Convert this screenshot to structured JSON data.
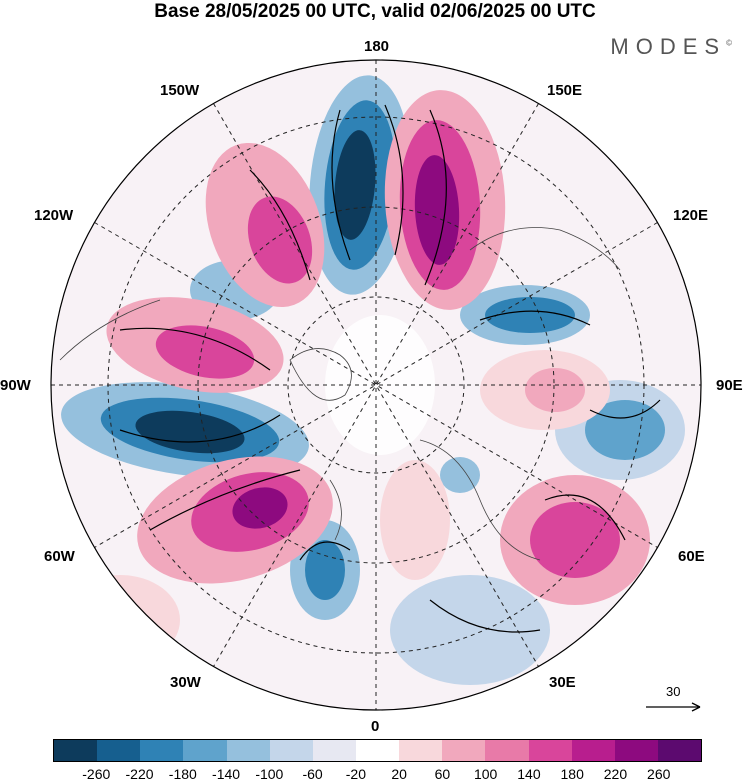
{
  "title": "Base 28/05/2025 00 UTC, valid 02/06/2025 00 UTC",
  "brand": "MODES",
  "brand_mark": "©",
  "longitude_labels": {
    "lon_180": "180",
    "lon_150E": "150E",
    "lon_120E": "120E",
    "lon_90E": "90E",
    "lon_60E": "60E",
    "lon_30E": "30E",
    "lon_0": "0",
    "lon_30W": "30W",
    "lon_60W": "60W",
    "lon_90W": "90W",
    "lon_120W": "120W",
    "lon_150W": "150W"
  },
  "reference_vector_label": "30",
  "colorbar": {
    "colors": [
      "#0d3b5c",
      "#165f8f",
      "#2f82b5",
      "#5fa3cc",
      "#95c0dd",
      "#c4d6ea",
      "#e7e8f2",
      "#ffffff",
      "#f8d8dc",
      "#f1a8bd",
      "#e87aa8",
      "#d9459b",
      "#b81e8e",
      "#8d0a7f",
      "#5c0a6f"
    ],
    "tick_labels": [
      "-260",
      "-220",
      "-180",
      "-140",
      "-100",
      "-60",
      "-20",
      "20",
      "60",
      "100",
      "140",
      "180",
      "220",
      "260"
    ]
  }
}
